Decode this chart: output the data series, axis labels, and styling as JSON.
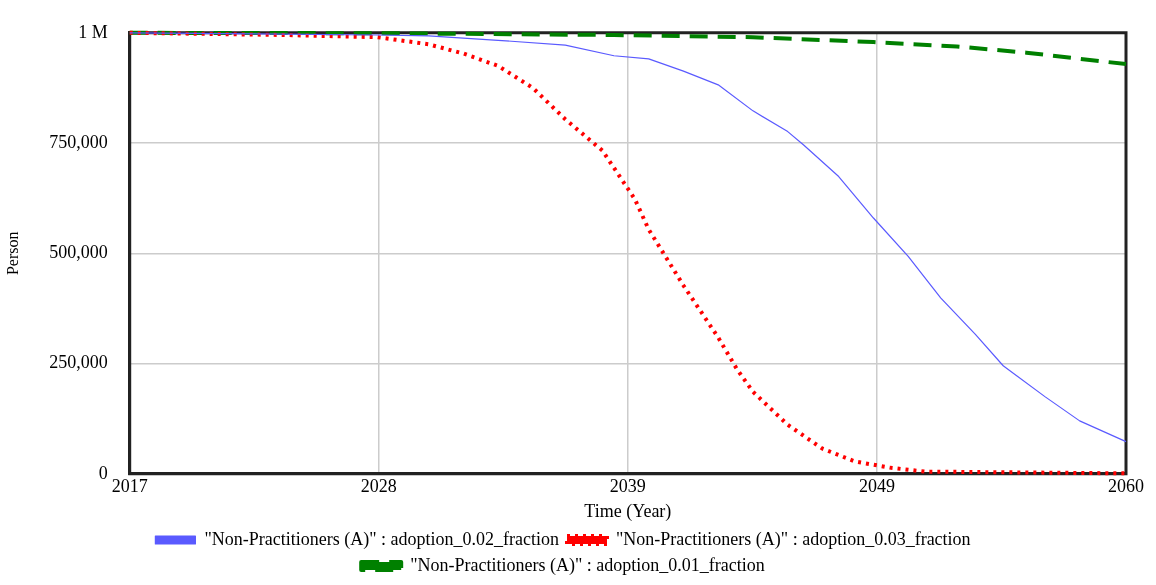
{
  "chart_data": {
    "type": "line",
    "xlabel": "Time (Year)",
    "ylabel": "Person",
    "xlim": [
      2017,
      2060
    ],
    "ylim": [
      0,
      1000000
    ],
    "xticks": [
      2017,
      {
        "value": 2027.75,
        "label": "2028"
      },
      {
        "value": 2038.5,
        "label": "2039"
      },
      {
        "value": 2049.25,
        "label": "2049"
      },
      2060
    ],
    "yticks": [
      0,
      {
        "value": 250000,
        "label": "250,000"
      },
      {
        "value": 500000,
        "label": "500,000"
      },
      {
        "value": 750000,
        "label": "750,000"
      },
      {
        "value": 1000000,
        "label": "1 M"
      }
    ],
    "grid": true,
    "legend": "bottom",
    "marker": "none",
    "series": [
      {
        "name": "\"Non-Practitioners (A)\" : adoption_0.02_fraction",
        "color": "#5a5aff",
        "line_style": "solid",
        "x": [
          2017,
          2027.7,
          2029.9,
          2032.9,
          2035.8,
          2037.9,
          2039.4,
          2040.9,
          2042.4,
          2043.9,
          2045.4,
          2046.1,
          2047.6,
          2049.1,
          2050.6,
          2052.0,
          2053.5,
          2054.7,
          2056.5,
          2058.0,
          2060
        ],
        "values": [
          1000000,
          995000,
          993000,
          983000,
          972000,
          948000,
          941000,
          913000,
          882000,
          823000,
          776000,
          745000,
          674000,
          580000,
          493000,
          399000,
          316000,
          245000,
          175000,
          120000,
          73000
        ]
      },
      {
        "name": "\"Non-Practitioners (A)\" : adoption_0.03_fraction",
        "color": "#ff0000",
        "line_style": "dotted",
        "x": [
          2017,
          2023.7,
          2027.7,
          2029.9,
          2031.4,
          2032.9,
          2034.4,
          2035.8,
          2037.4,
          2038.8,
          2039.4,
          2040.9,
          2042.4,
          2043.2,
          2043.9,
          2045.4,
          2046.9,
          2048.3,
          2049.8,
          2051.3,
          2060
        ],
        "values": [
          1000000,
          995000,
          990000,
          974000,
          953000,
          925000,
          875000,
          804000,
          733000,
          623000,
          554000,
          427000,
          309000,
          238000,
          186000,
          111000,
          57000,
          28000,
          14000,
          5000,
          1000
        ]
      },
      {
        "name": "\"Non-Practitioners (A)\" : adoption_0.01_fraction",
        "color": "#008000",
        "line_style": "dashed",
        "x": [
          2017,
          2028,
          2037.9,
          2043.9,
          2049.1,
          2052.7,
          2055.7,
          2060
        ],
        "values": [
          1000000,
          999000,
          995000,
          990000,
          979000,
          969000,
          955000,
          929000
        ]
      }
    ]
  }
}
